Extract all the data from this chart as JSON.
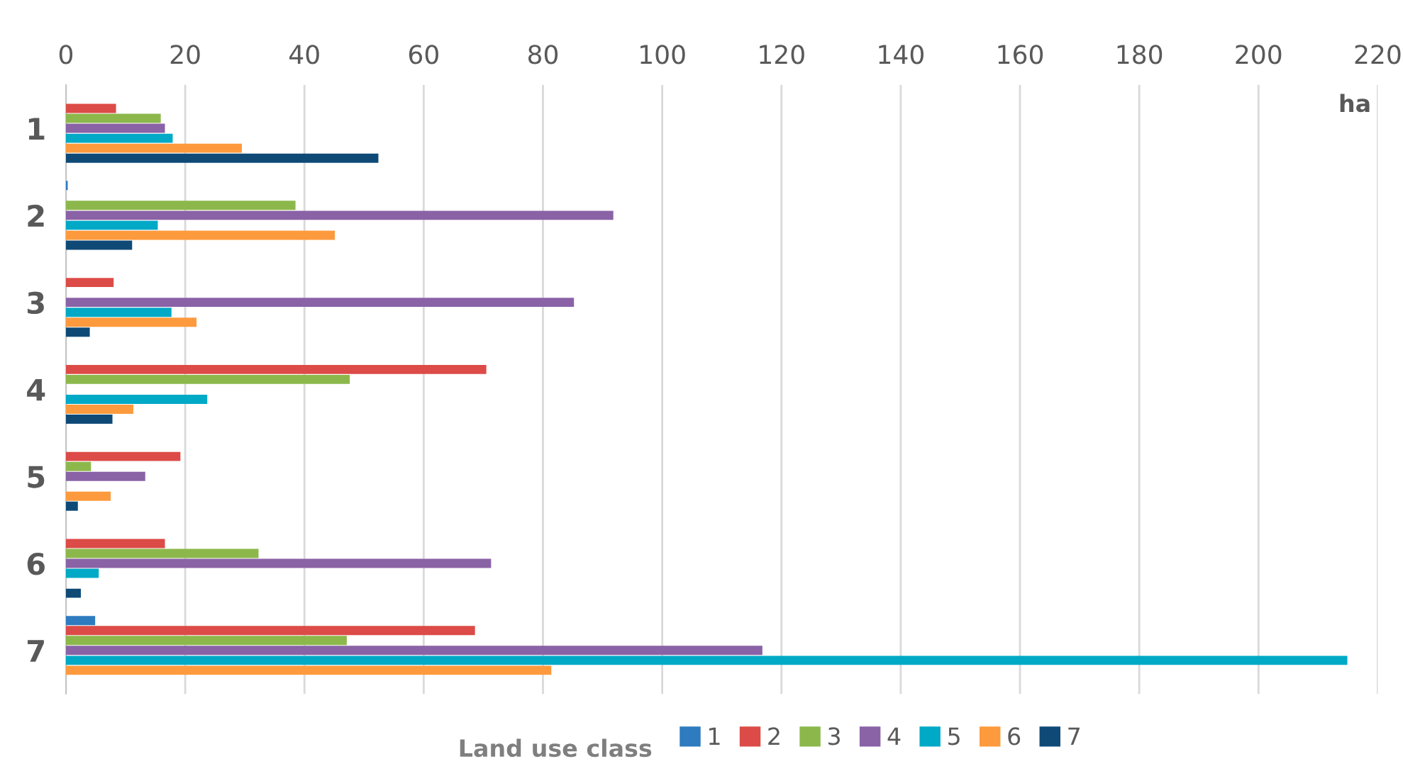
{
  "chart_data": {
    "type": "bar",
    "orientation": "horizontal",
    "categories": [
      "1",
      "2",
      "3",
      "4",
      "5",
      "6",
      "7"
    ],
    "series": [
      {
        "name": "1",
        "color": "#2e7bbf",
        "values": [
          null,
          0.3,
          null,
          null,
          null,
          null,
          4.9
        ]
      },
      {
        "name": "2",
        "color": "#dc4b47",
        "values": [
          8.4,
          null,
          8.0,
          70.5,
          19.2,
          16.6,
          68.6
        ]
      },
      {
        "name": "3",
        "color": "#8cb84b",
        "values": [
          15.9,
          38.5,
          null,
          47.6,
          4.2,
          32.3,
          47.1
        ]
      },
      {
        "name": "4",
        "color": "#8a62a6",
        "values": [
          16.6,
          91.8,
          85.2,
          null,
          13.3,
          71.3,
          116.8
        ]
      },
      {
        "name": "5",
        "color": "#00a9c6",
        "values": [
          17.9,
          15.4,
          17.7,
          23.7,
          null,
          5.5,
          214.9
        ]
      },
      {
        "name": "6",
        "color": "#fd9a3d",
        "values": [
          29.5,
          45.1,
          21.9,
          11.3,
          7.5,
          null,
          81.4
        ]
      },
      {
        "name": "7",
        "color": "#0f4a77",
        "values": [
          52.4,
          11.1,
          4.0,
          7.8,
          2.0,
          2.5,
          null
        ]
      }
    ],
    "xlabel": "ha",
    "legend_title": "Land use class",
    "legend": "bottom",
    "grid": "x",
    "xlim": [
      0,
      220
    ],
    "xticks": [
      0,
      20,
      40,
      60,
      80,
      100,
      120,
      140,
      160,
      180,
      200,
      220
    ]
  }
}
